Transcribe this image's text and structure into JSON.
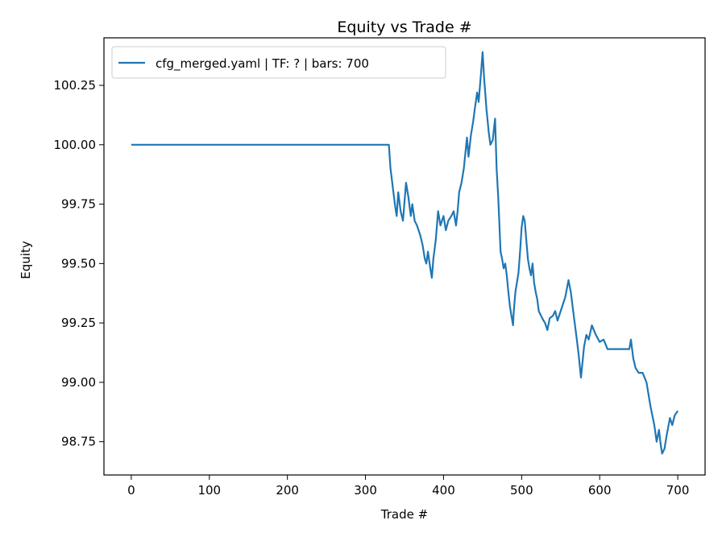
{
  "chart_data": {
    "type": "line",
    "title": "Equity vs Trade #",
    "xlabel": "Trade #",
    "ylabel": "Equity",
    "xlim": [
      -35,
      735
    ],
    "ylim": [
      98.61,
      100.45
    ],
    "xticks": [
      0,
      100,
      200,
      300,
      400,
      500,
      600,
      700
    ],
    "yticks": [
      98.75,
      99.0,
      99.25,
      99.5,
      99.75,
      100.0,
      100.25
    ],
    "ytick_labels": [
      "98.75",
      "99.00",
      "99.25",
      "99.50",
      "99.75",
      "100.00",
      "100.25"
    ],
    "grid": false,
    "legend": {
      "position": "top-left"
    },
    "series": [
      {
        "name": "cfg_merged.yaml | TF: ? | bars: 700",
        "color": "#1f77b4",
        "x": [
          0,
          100,
          200,
          300,
          330,
          332,
          335,
          338,
          340,
          342,
          345,
          348,
          350,
          352,
          355,
          358,
          360,
          363,
          366,
          370,
          373,
          376,
          378,
          380,
          383,
          385,
          387,
          390,
          393,
          396,
          400,
          403,
          406,
          410,
          413,
          416,
          418,
          420,
          423,
          426,
          430,
          432,
          435,
          438,
          440,
          443,
          445,
          448,
          450,
          452,
          455,
          458,
          460,
          463,
          466,
          468,
          470,
          473,
          475,
          477,
          479,
          481,
          483,
          485,
          487,
          489,
          490,
          492,
          494,
          496,
          498,
          500,
          502,
          504,
          506,
          508,
          510,
          512,
          514,
          516,
          518,
          520,
          522,
          525,
          528,
          530,
          533,
          536,
          540,
          543,
          546,
          550,
          553,
          556,
          560,
          563,
          566,
          570,
          573,
          576,
          580,
          583,
          586,
          590,
          595,
          600,
          605,
          610,
          620,
          630,
          638,
          640,
          643,
          646,
          650,
          655,
          660,
          665,
          670,
          673,
          676,
          678,
          680,
          683,
          686,
          690,
          693,
          696,
          700
        ],
        "y": [
          100.0,
          100.0,
          100.0,
          100.0,
          100.0,
          99.9,
          99.82,
          99.74,
          99.7,
          99.8,
          99.72,
          99.68,
          99.76,
          99.84,
          99.78,
          99.7,
          99.75,
          99.68,
          99.66,
          99.62,
          99.58,
          99.52,
          99.5,
          99.55,
          99.48,
          99.44,
          99.52,
          99.6,
          99.72,
          99.66,
          99.7,
          99.64,
          99.68,
          99.7,
          99.72,
          99.66,
          99.72,
          99.8,
          99.84,
          99.9,
          100.03,
          99.95,
          100.04,
          100.1,
          100.15,
          100.22,
          100.18,
          100.3,
          100.39,
          100.28,
          100.15,
          100.05,
          100.0,
          100.02,
          100.11,
          99.9,
          99.78,
          99.55,
          99.52,
          99.48,
          99.5,
          99.45,
          99.38,
          99.32,
          99.28,
          99.24,
          99.3,
          99.38,
          99.42,
          99.46,
          99.55,
          99.65,
          99.7,
          99.68,
          99.6,
          99.52,
          99.48,
          99.45,
          99.5,
          99.42,
          99.38,
          99.35,
          99.3,
          99.28,
          99.26,
          99.25,
          99.22,
          99.27,
          99.28,
          99.3,
          99.26,
          99.3,
          99.33,
          99.36,
          99.43,
          99.38,
          99.3,
          99.2,
          99.12,
          99.02,
          99.15,
          99.2,
          99.18,
          99.24,
          99.2,
          99.17,
          99.18,
          99.14,
          99.14,
          99.14,
          99.14,
          99.18,
          99.1,
          99.06,
          99.04,
          99.04,
          99.0,
          98.9,
          98.82,
          98.75,
          98.8,
          98.74,
          98.7,
          98.72,
          98.78,
          98.85,
          98.82,
          98.86,
          98.88
        ]
      }
    ]
  }
}
